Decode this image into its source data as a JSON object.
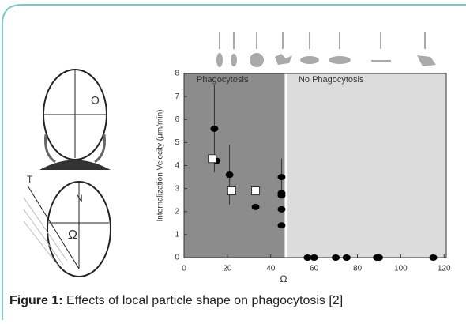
{
  "chart_data": {
    "type": "scatter",
    "regions": [
      {
        "label": "Phagocytosis",
        "from": 0,
        "to": 47,
        "color": "#8c8c8c"
      },
      {
        "label": "No Phagocytosis",
        "from": 47,
        "to": 121,
        "color": "#dcdcdc"
      }
    ],
    "x_label": "Ω",
    "y_label": "Internalization Velocity (μm/min)",
    "series": [
      {
        "marker": "circle",
        "color": "#000000",
        "x": [
          14,
          15,
          21,
          33,
          45,
          45,
          45,
          45,
          45,
          57,
          60,
          70,
          75,
          89,
          90,
          115
        ],
        "values": [
          5.6,
          4.2,
          3.6,
          2.2,
          3.5,
          2.8,
          2.7,
          2.1,
          1.4,
          0,
          0,
          0,
          0,
          0,
          0,
          0
        ],
        "errors": [
          1.9,
          null,
          1.3,
          null,
          0.8,
          null,
          null,
          null,
          null,
          null,
          null,
          null,
          null,
          null,
          null,
          null
        ]
      },
      {
        "marker": "square",
        "color": "#ffffff",
        "x": [
          13,
          22,
          33
        ],
        "values": [
          4.3,
          2.9,
          2.9
        ]
      }
    ],
    "xlim": [
      0,
      121
    ],
    "xticks": [
      0,
      20,
      40,
      60,
      80,
      100,
      120
    ],
    "ylim": [
      0,
      8
    ],
    "yticks": [
      0,
      1,
      2,
      3,
      4,
      5,
      6,
      7,
      8
    ]
  },
  "diagram": {
    "labels": [
      "Θ",
      "T",
      "N",
      "Ω"
    ]
  },
  "caption": {
    "label": "Figure 1:",
    "text": "Effects of local particle shape on phagocytosis [2]"
  }
}
